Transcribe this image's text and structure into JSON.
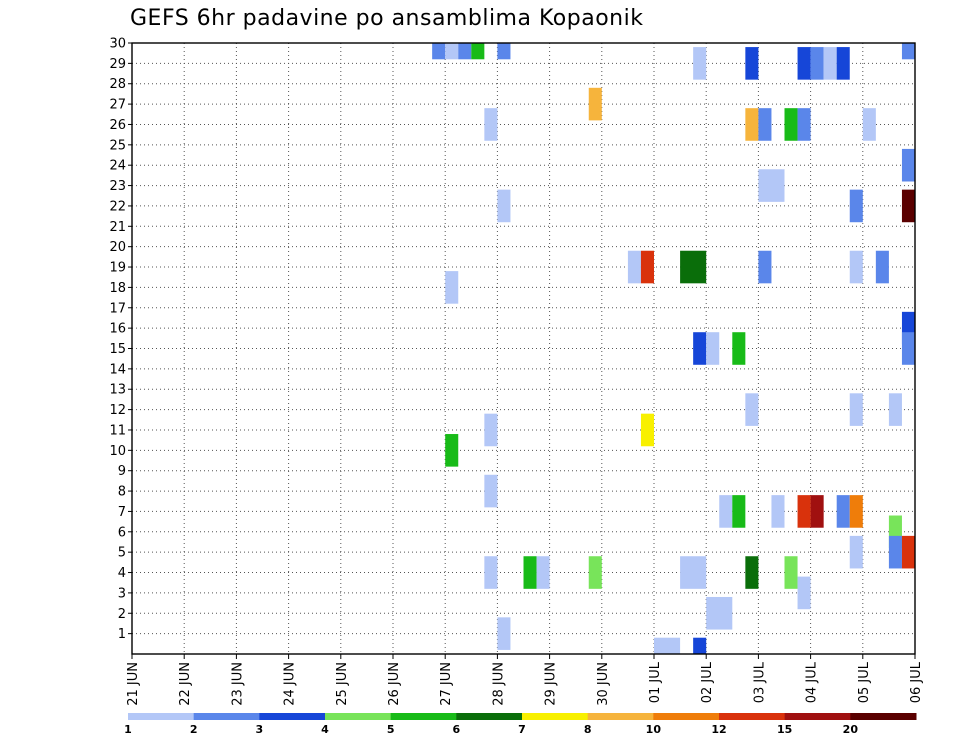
{
  "chart_data": {
    "type": "heatmap",
    "title": "GEFS 6hr padavine po ansamblima Kopaonik",
    "y_ticks": [
      "1",
      "2",
      "3",
      "4",
      "5",
      "6",
      "7",
      "8",
      "9",
      "10",
      "11",
      "12",
      "13",
      "14",
      "15",
      "16",
      "17",
      "18",
      "19",
      "20",
      "21",
      "22",
      "23",
      "24",
      "25",
      "26",
      "27",
      "28",
      "29",
      "30"
    ],
    "y_range": [
      0,
      30
    ],
    "x_ticks": [
      "21 JUN",
      "22 JUN",
      "23 JUN",
      "24 JUN",
      "25 JUN",
      "26 JUN",
      "27 JUN",
      "28 JUN",
      "29 JUN",
      "30 JUN",
      "01 JUL",
      "02 JUL",
      "03 JUL",
      "04 JUL",
      "05 JUL",
      "06 JUL"
    ],
    "x_range": [
      0,
      60
    ],
    "grid": true,
    "colorbar": {
      "labels": [
        "1",
        "2",
        "3",
        "4",
        "5",
        "6",
        "7",
        "8",
        "10",
        "12",
        "15",
        "20"
      ],
      "colors": [
        "#b3c7f7",
        "#5a86ea",
        "#1646d8",
        "#78e45a",
        "#18bb18",
        "#0a6e0a",
        "#f8f000",
        "#f6b43c",
        "#ef7d0a",
        "#d9320c",
        "#a01010",
        "#5a0000"
      ]
    },
    "cells": [
      {
        "m": 30,
        "t": [
          23,
          24
        ],
        "c": 1
      },
      {
        "m": 30,
        "t": [
          24,
          25
        ],
        "c": 0
      },
      {
        "m": 30,
        "t": [
          25,
          26
        ],
        "c": 1
      },
      {
        "m": 30,
        "t": [
          26,
          27
        ],
        "c": 4
      },
      {
        "m": 30,
        "t": [
          28,
          29
        ],
        "c": 1
      },
      {
        "m": 30,
        "t": [
          59,
          60
        ],
        "c": 1
      },
      {
        "m": 29,
        "t": [
          43,
          44
        ],
        "c": 0
      },
      {
        "m": 29,
        "t": [
          47,
          48
        ],
        "c": 2
      },
      {
        "m": 29,
        "t": [
          51,
          52
        ],
        "c": 2
      },
      {
        "m": 29,
        "t": [
          52,
          53
        ],
        "c": 1
      },
      {
        "m": 29,
        "t": [
          53,
          54
        ],
        "c": 0
      },
      {
        "m": 29,
        "t": [
          54,
          55
        ],
        "c": 2
      },
      {
        "m": 27,
        "t": [
          35,
          36
        ],
        "c": 7
      },
      {
        "m": 26,
        "t": [
          27,
          28
        ],
        "c": 0
      },
      {
        "m": 26,
        "t": [
          47,
          48
        ],
        "c": 7
      },
      {
        "m": 26,
        "t": [
          48,
          49
        ],
        "c": 1
      },
      {
        "m": 26,
        "t": [
          50,
          51
        ],
        "c": 4
      },
      {
        "m": 26,
        "t": [
          51,
          52
        ],
        "c": 1
      },
      {
        "m": 26,
        "t": [
          56,
          57
        ],
        "c": 0
      },
      {
        "m": 24,
        "t": [
          59,
          60
        ],
        "c": 1
      },
      {
        "m": 23,
        "t": [
          48,
          50
        ],
        "c": 0
      },
      {
        "m": 22,
        "t": [
          28,
          29
        ],
        "c": 0
      },
      {
        "m": 22,
        "t": [
          55,
          56
        ],
        "c": 1
      },
      {
        "m": 22,
        "t": [
          59,
          60
        ],
        "c": 11
      },
      {
        "m": 19,
        "t": [
          38,
          39
        ],
        "c": 0
      },
      {
        "m": 19,
        "t": [
          39,
          40
        ],
        "c": 9
      },
      {
        "m": 19,
        "t": [
          42,
          44
        ],
        "c": 5
      },
      {
        "m": 19,
        "t": [
          48,
          49
        ],
        "c": 1
      },
      {
        "m": 19,
        "t": [
          55,
          56
        ],
        "c": 0
      },
      {
        "m": 19,
        "t": [
          57,
          58
        ],
        "c": 1
      },
      {
        "m": 18,
        "t": [
          24,
          25
        ],
        "c": 0
      },
      {
        "m": 16,
        "t": [
          59,
          60
        ],
        "c": 2
      },
      {
        "m": 15,
        "t": [
          43,
          44
        ],
        "c": 2
      },
      {
        "m": 15,
        "t": [
          44,
          45
        ],
        "c": 0
      },
      {
        "m": 15,
        "t": [
          46,
          47
        ],
        "c": 4
      },
      {
        "m": 15,
        "t": [
          59,
          60
        ],
        "c": 1
      },
      {
        "m": 12,
        "t": [
          47,
          48
        ],
        "c": 0
      },
      {
        "m": 12,
        "t": [
          55,
          56
        ],
        "c": 0
      },
      {
        "m": 12,
        "t": [
          58,
          59
        ],
        "c": 0
      },
      {
        "m": 11,
        "t": [
          27,
          28
        ],
        "c": 0
      },
      {
        "m": 11,
        "t": [
          39,
          40
        ],
        "c": 6
      },
      {
        "m": 10,
        "t": [
          24,
          25
        ],
        "c": 4
      },
      {
        "m": 8,
        "t": [
          27,
          28
        ],
        "c": 0
      },
      {
        "m": 7,
        "t": [
          45,
          46
        ],
        "c": 0
      },
      {
        "m": 7,
        "t": [
          46,
          47
        ],
        "c": 4
      },
      {
        "m": 7,
        "t": [
          49,
          50
        ],
        "c": 0
      },
      {
        "m": 7,
        "t": [
          51,
          52
        ],
        "c": 9
      },
      {
        "m": 7,
        "t": [
          52,
          53
        ],
        "c": 10
      },
      {
        "m": 7,
        "t": [
          54,
          55
        ],
        "c": 1
      },
      {
        "m": 7,
        "t": [
          55,
          56
        ],
        "c": 8
      },
      {
        "m": 6,
        "t": [
          58,
          59
        ],
        "c": 3
      },
      {
        "m": 5,
        "t": [
          55,
          56
        ],
        "c": 0
      },
      {
        "m": 5,
        "t": [
          58,
          59
        ],
        "c": 1
      },
      {
        "m": 5,
        "t": [
          59,
          60
        ],
        "c": 9
      },
      {
        "m": 4,
        "t": [
          27,
          28
        ],
        "c": 0
      },
      {
        "m": 4,
        "t": [
          30,
          31
        ],
        "c": 4
      },
      {
        "m": 4,
        "t": [
          31,
          32
        ],
        "c": 0
      },
      {
        "m": 4,
        "t": [
          35,
          36
        ],
        "c": 3
      },
      {
        "m": 4,
        "t": [
          42,
          44
        ],
        "c": 0
      },
      {
        "m": 4,
        "t": [
          47,
          48
        ],
        "c": 5
      },
      {
        "m": 4,
        "t": [
          50,
          51
        ],
        "c": 3
      },
      {
        "m": 3,
        "t": [
          51,
          52
        ],
        "c": 0
      },
      {
        "m": 2,
        "t": [
          44,
          46
        ],
        "c": 0
      },
      {
        "m": 1,
        "t": [
          28,
          29
        ],
        "c": 0
      },
      {
        "m": 0,
        "t": [
          40,
          42
        ],
        "c": 0
      },
      {
        "m": 0,
        "t": [
          43,
          44
        ],
        "c": 2
      }
    ]
  }
}
